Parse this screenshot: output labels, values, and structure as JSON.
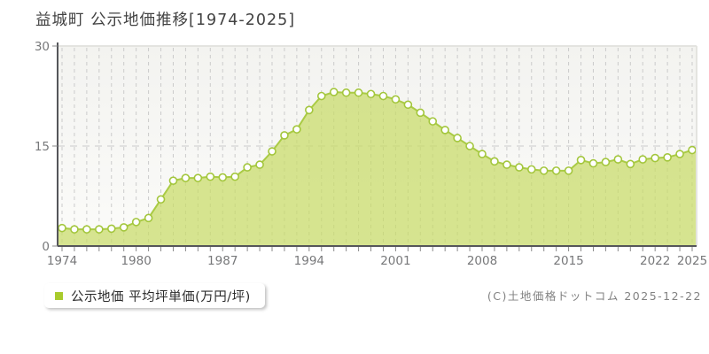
{
  "header": {
    "title": "益城町 公示地価推移[1974-2025]"
  },
  "legend": {
    "label": "公示地価 平均坪単価(万円/坪)",
    "swatch_color": "#a9cb2d"
  },
  "footer": {
    "copyright": "(C)土地価格ドットコム 2025-12-22"
  },
  "colors": {
    "area_fill": "#c7db66",
    "line": "#aacb45",
    "marker_stroke": "#a3c63c",
    "marker_fill": "#ffffff",
    "grid": "#cbcbcb",
    "axis": "#55565a",
    "tick": "#8a8a8a",
    "tick_label": "#77787a",
    "plot_bg_top": "#f3f3f0",
    "plot_bg_bottom": "#fbfbf9",
    "border_light": "#e4e4e0"
  },
  "chart_data": {
    "type": "area",
    "title": "益城町 公示地価推移[1974-2025]",
    "ylabel": "平均坪単価(万円/坪)",
    "ylim": [
      0,
      30
    ],
    "yticks": [
      0,
      15,
      30
    ],
    "xtick_labels": [
      1974,
      1980,
      1987,
      1994,
      2001,
      2008,
      2015,
      2022,
      2025
    ],
    "grid": true,
    "legend_position": "bottom-left",
    "x": [
      1974,
      1975,
      1976,
      1977,
      1978,
      1979,
      1980,
      1981,
      1982,
      1983,
      1984,
      1985,
      1986,
      1987,
      1988,
      1989,
      1990,
      1991,
      1992,
      1993,
      1994,
      1995,
      1996,
      1997,
      1998,
      1999,
      2000,
      2001,
      2002,
      2003,
      2004,
      2005,
      2006,
      2007,
      2008,
      2009,
      2010,
      2011,
      2012,
      2013,
      2014,
      2015,
      2016,
      2017,
      2018,
      2019,
      2020,
      2021,
      2022,
      2023,
      2024,
      2025
    ],
    "values": [
      2.7,
      2.5,
      2.5,
      2.5,
      2.6,
      2.8,
      3.6,
      4.2,
      7.0,
      9.8,
      10.2,
      10.2,
      10.4,
      10.3,
      10.4,
      11.8,
      12.2,
      14.2,
      16.6,
      17.5,
      20.4,
      22.5,
      23.1,
      23.0,
      23.0,
      22.8,
      22.5,
      22.0,
      21.2,
      20.0,
      18.7,
      17.4,
      16.2,
      15.0,
      13.8,
      12.7,
      12.2,
      11.8,
      11.5,
      11.3,
      11.3,
      11.3,
      12.9,
      12.4,
      12.6,
      13.0,
      12.3,
      13.0,
      13.2,
      13.3,
      13.8,
      14.4
    ]
  }
}
